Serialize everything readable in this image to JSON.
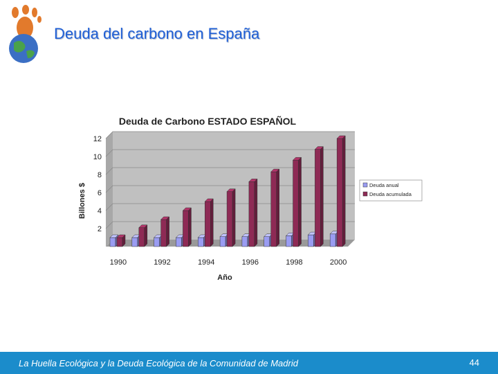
{
  "slide": {
    "title": "Deuda del carbono en España",
    "footer": "La Huella Ecológica y la Deuda Ecológica de la Comunidad de Madrid",
    "page_number": "44"
  },
  "chart_data": {
    "type": "bar",
    "title": "Deuda de Carbono ESTADO ESPAÑOL",
    "xlabel": "Año",
    "ylabel": "Billones $",
    "ylim": [
      0,
      12
    ],
    "yticks": [
      2,
      4,
      6,
      8,
      10,
      12
    ],
    "categories": [
      "1990",
      "1991",
      "1992",
      "1993",
      "1994",
      "1995",
      "1996",
      "1997",
      "1998",
      "1999",
      "2000"
    ],
    "xtick_labels": [
      "1990",
      "1992",
      "1994",
      "1996",
      "1998",
      "2000"
    ],
    "legend_position": "right",
    "series": [
      {
        "name": "Deuda anual",
        "color": "#9a9cf2",
        "values": [
          1.0,
          1.0,
          1.0,
          1.0,
          1.0,
          1.1,
          1.1,
          1.1,
          1.2,
          1.3,
          1.4
        ]
      },
      {
        "name": "Deuda acumulada",
        "color": "#8e2a55",
        "values": [
          1.0,
          2.1,
          3.0,
          4.0,
          5.0,
          6.1,
          7.2,
          8.3,
          9.6,
          10.8,
          12.0
        ]
      }
    ]
  },
  "colors": {
    "title": "#1f5fd6",
    "footer_bg": "#1b8ccb",
    "plot_wall": "#c0c0c0"
  }
}
